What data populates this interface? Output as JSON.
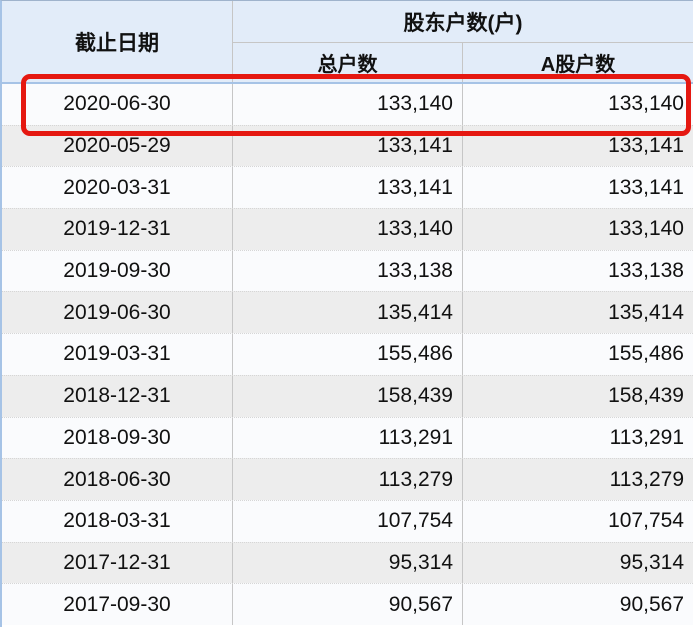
{
  "table": {
    "header": {
      "date_col": "截止日期",
      "group_col": "股东户数(户)",
      "sub_cols": [
        "总户数",
        "A股户数"
      ]
    },
    "rows": [
      {
        "date": "2020-06-30",
        "total": "133,140",
        "a_share": "133,140",
        "highlighted": true
      },
      {
        "date": "2020-05-29",
        "total": "133,141",
        "a_share": "133,141"
      },
      {
        "date": "2020-03-31",
        "total": "133,141",
        "a_share": "133,141"
      },
      {
        "date": "2019-12-31",
        "total": "133,140",
        "a_share": "133,140"
      },
      {
        "date": "2019-09-30",
        "total": "133,138",
        "a_share": "133,138"
      },
      {
        "date": "2019-06-30",
        "total": "135,414",
        "a_share": "135,414"
      },
      {
        "date": "2019-03-31",
        "total": "155,486",
        "a_share": "155,486"
      },
      {
        "date": "2018-12-31",
        "total": "158,439",
        "a_share": "158,439"
      },
      {
        "date": "2018-09-30",
        "total": "113,291",
        "a_share": "113,291"
      },
      {
        "date": "2018-06-30",
        "total": "113,279",
        "a_share": "113,279"
      },
      {
        "date": "2018-03-31",
        "total": "107,754",
        "a_share": "107,754"
      },
      {
        "date": "2017-12-31",
        "total": "95,314",
        "a_share": "95,314"
      },
      {
        "date": "2017-09-30",
        "total": "90,567",
        "a_share": "90,567"
      }
    ]
  },
  "colors": {
    "header_bg": "#e2ecf9",
    "row_even_bg": "#ededed",
    "row_odd_bg": "#fafbfd",
    "grid_line": "#c6c6c6",
    "outer_blue": "#a6c3e6",
    "highlight_red": "#e51811",
    "text": "#111111"
  }
}
